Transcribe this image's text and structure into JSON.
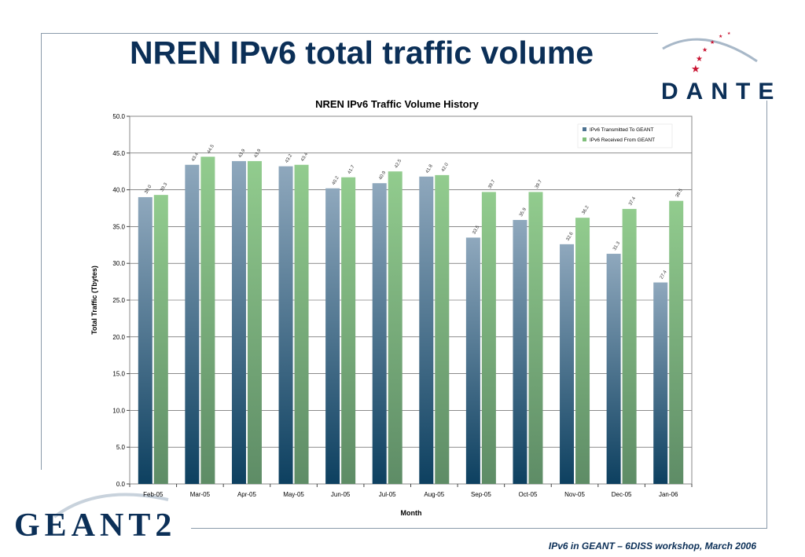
{
  "slide": {
    "title": "NREN IPv6 total traffic volume",
    "footer": "IPv6 in GEANT – 6DISS workshop, March 2006",
    "logos": {
      "top_right": "DANTE",
      "bottom_left": "GEANT2"
    }
  },
  "colors": {
    "title": "#0b2f57",
    "series_transmitted_top": "#8fa8bd",
    "series_transmitted_bottom": "#0d4060",
    "series_received_top": "#92cc8e",
    "series_received_bottom": "#5e8c66"
  },
  "chart_data": {
    "type": "bar",
    "title": "NREN IPv6 Traffic Volume History",
    "xlabel": "Month",
    "ylabel": "Total Traffic (Tbytes)",
    "ylim": [
      0,
      50
    ],
    "yticks": [
      "0.0",
      "5.0",
      "10.0",
      "15.0",
      "20.0",
      "25.0",
      "30.0",
      "35.0",
      "40.0",
      "45.0",
      "50.0"
    ],
    "grid": true,
    "legend_position": "top-right",
    "categories": [
      "Feb-05",
      "Mar-05",
      "Apr-05",
      "May-05",
      "Jun-05",
      "Jul-05",
      "Aug-05",
      "Sep-05",
      "Oct-05",
      "Nov-05",
      "Dec-05",
      "Jan-06"
    ],
    "series": [
      {
        "name": "IPv6 Transmitted To GEANT",
        "values": [
          39.0,
          43.4,
          43.9,
          43.2,
          40.2,
          40.9,
          41.8,
          33.5,
          35.9,
          32.6,
          31.3,
          27.4
        ],
        "labels": [
          "39.0",
          "43.4",
          "43.9",
          "43.2",
          "40.2",
          "40.9",
          "41.8",
          "33.5",
          "35.9",
          "32.6",
          "31.3",
          "27.4"
        ]
      },
      {
        "name": "IPv6 Received From GEANT",
        "values": [
          39.3,
          44.5,
          43.9,
          43.4,
          41.7,
          42.5,
          42.0,
          39.7,
          39.7,
          36.2,
          37.4,
          38.5
        ],
        "labels": [
          "39.3",
          "44.5",
          "43.9",
          "43.4",
          "41.7",
          "42.5",
          "42.0",
          "39.7",
          "39.7",
          "36.2",
          "37.4",
          "38.5"
        ]
      }
    ]
  }
}
